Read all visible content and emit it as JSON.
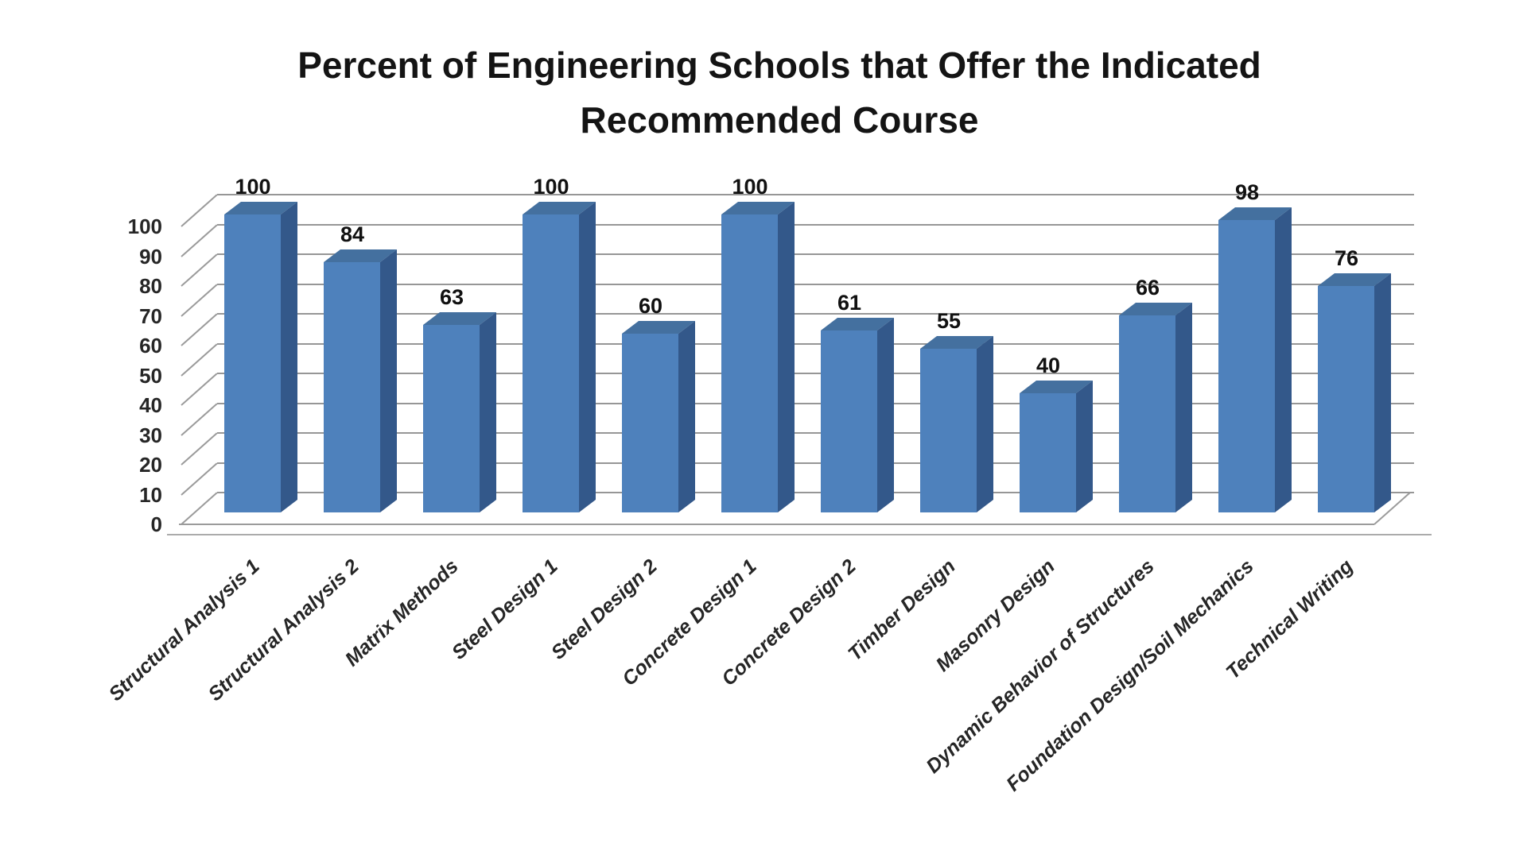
{
  "page": {
    "background": "#ffffff"
  },
  "chart_data": {
    "type": "bar",
    "projection": "3d-column",
    "title": "Percent of Engineering Schools that Offer the Indicated Recommended Course",
    "title_lines": [
      "Percent of Engineering Schools that Offer the Indicated",
      "Recommended Course"
    ],
    "categories": [
      "Structural Analysis 1",
      "Structural Analysis 2",
      "Matrix Methods",
      "Steel Design 1",
      "Steel Design 2",
      "Concrete Design 1",
      "Concrete Design 2",
      "Timber Design",
      "Masonry Design",
      "Dynamic Behavior of Structures",
      "Foundation Design/Soil Mechanics",
      "Technical Writing"
    ],
    "values": [
      100,
      84,
      63,
      100,
      60,
      100,
      61,
      55,
      40,
      66,
      98,
      76
    ],
    "data_labels_shown": true,
    "xlabel": "",
    "ylabel": "",
    "y_ticks": [
      0,
      10,
      20,
      30,
      40,
      50,
      60,
      70,
      80,
      90,
      100
    ],
    "ylim": [
      0,
      100
    ],
    "grid": true,
    "legend": "none",
    "colors": {
      "bar_front": "#4E81BC",
      "bar_top": "#44709F",
      "bar_side": "#33588A",
      "gridline": "#969696",
      "axis_text": "#262626",
      "value_label_text": "#111111",
      "title_text": "#141414",
      "background": "#ffffff"
    }
  }
}
